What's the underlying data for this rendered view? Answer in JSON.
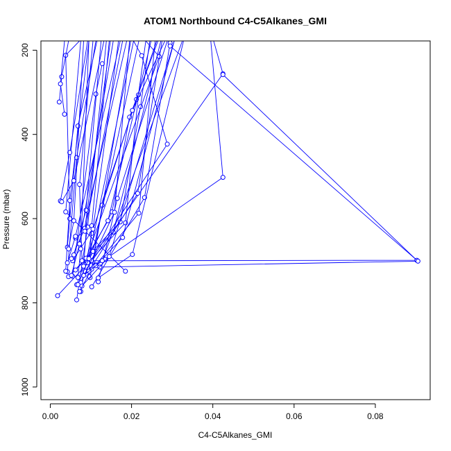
{
  "chart_data": {
    "type": "line",
    "title": "ATOM1 Northbound C4-C5Alkanes_GMI",
    "xlabel": "C4-C5Alkanes_GMI",
    "ylabel": "Pressure (mbar)",
    "xlim": [
      -0.0023,
      0.0935
    ],
    "ylim": [
      1030,
      178
    ],
    "y_reversed": true,
    "x_ticks": [
      "0.00",
      "0.02",
      "0.04",
      "0.06",
      "0.08"
    ],
    "x_tick_values": [
      0,
      0.02,
      0.04,
      0.06,
      0.08
    ],
    "y_ticks": [
      "200",
      "400",
      "600",
      "800",
      "1000"
    ],
    "y_tick_values": [
      200,
      400,
      600,
      800,
      1000
    ],
    "color": "#0000FF",
    "markers": "open-circle",
    "legend": "none",
    "grid": false,
    "series": [
      {
        "x": [
          0.0018,
          0.0185,
          0.0217,
          0.0235
        ],
        "y": [
          783,
          610,
          306,
          178
        ]
      },
      {
        "x": [
          0.0045,
          0.0172,
          0.0222,
          0.0245
        ],
        "y": [
          738,
          608,
          334,
          178
        ]
      },
      {
        "x": [
          0.0055,
          0.0112,
          0.0128
        ],
        "y": [
          737,
          304,
          232
        ]
      },
      {
        "x": [
          0.0065,
          0.0092,
          0.0138
        ],
        "y": [
          793,
          620,
          178
        ]
      },
      {
        "x": [
          0.0075,
          0.0102,
          0.0212,
          0.0262
        ],
        "y": [
          773,
          635,
          317,
          178
        ]
      },
      {
        "x": [
          0.0088,
          0.0152,
          0.0195,
          0.0265
        ],
        "y": [
          700,
          584,
          359,
          178
        ]
      },
      {
        "x": [
          0.0098,
          0.0128,
          0.0202,
          0.0282
        ],
        "y": [
          740,
          568,
          343,
          178
        ]
      },
      {
        "x": [
          0.0118,
          0.0165,
          0.0288
        ],
        "y": [
          750,
          552,
          178
        ]
      },
      {
        "x": [
          0.0185,
          0.0038,
          0.0075
        ],
        "y": [
          725,
          584,
          178
        ]
      },
      {
        "x": [
          0.0042,
          0.0068,
          0.0115
        ],
        "y": [
          668,
          380,
          178
        ]
      },
      {
        "x": [
          0.0025,
          0.0048,
          0.0092
        ],
        "y": [
          558,
          443,
          178
        ]
      },
      {
        "x": [
          0.0042,
          0.0065,
          0.0112
        ],
        "y": [
          726,
          455,
          178
        ]
      },
      {
        "x": [
          0.0078,
          0.0072,
          0.0105
        ],
        "y": [
          700,
          519,
          178
        ]
      },
      {
        "x": [
          0.0048,
          0.0038,
          0.0072
        ],
        "y": [
          600,
          212,
          178
        ]
      },
      {
        "x": [
          0.0022,
          0.0028,
          0.0045
        ],
        "y": [
          323,
          263,
          178
        ]
      },
      {
        "x": [
          0.0035,
          0.0025,
          0.0035
        ],
        "y": [
          352,
          280,
          178
        ]
      },
      {
        "x": [
          0.0098,
          0.0288,
          0.0225,
          0.0205
        ],
        "y": [
          702,
          423,
          213,
          178
        ]
      },
      {
        "x": [
          0.0102,
          0.0232,
          0.0295
        ],
        "y": [
          762,
          550,
          183
        ]
      },
      {
        "x": [
          0.0085,
          0.0425,
          0.0402
        ],
        "y": [
          725,
          256,
          178
        ]
      },
      {
        "x": [
          0.0102,
          0.0902,
          0.0425
        ],
        "y": [
          700,
          699,
          258
        ]
      },
      {
        "x": [
          0.0122,
          0.0905,
          0.0295
        ],
        "y": [
          715,
          701,
          190
        ]
      },
      {
        "x": [
          0.0135,
          0.0425,
          0.0395
        ],
        "y": [
          697,
          502,
          178
        ]
      },
      {
        "x": [
          0.0065,
          0.0268,
          0.0235
        ],
        "y": [
          757,
          215,
          178
        ]
      },
      {
        "x": [
          0.0075,
          0.0158,
          0.0195
        ],
        "y": [
          752,
          585,
          178
        ]
      },
      {
        "x": [
          0.0112,
          0.0218,
          0.0258
        ],
        "y": [
          710,
          587,
          178
        ]
      },
      {
        "x": [
          0.0095,
          0.0102,
          0.0145
        ],
        "y": [
          737,
          617,
          178
        ]
      },
      {
        "x": [
          0.0055,
          0.0105,
          0.0168
        ],
        "y": [
          700,
          625,
          178
        ]
      },
      {
        "x": [
          0.0062,
          0.0155,
          0.0272
        ],
        "y": [
          722,
          632,
          178
        ]
      },
      {
        "x": [
          0.0082,
          0.0092,
          0.0188
        ],
        "y": [
          713,
          582,
          178
        ]
      },
      {
        "x": [
          0.0092,
          0.0105,
          0.0218
        ],
        "y": [
          705,
          678,
          178
        ]
      },
      {
        "x": [
          0.0052,
          0.0085,
          0.0148
        ],
        "y": [
          695,
          623,
          178
        ]
      },
      {
        "x": [
          0.0078,
          0.0145,
          0.0305
        ],
        "y": [
          760,
          690,
          178
        ]
      },
      {
        "x": [
          0.0038,
          0.0048,
          0.0095
        ],
        "y": [
          725,
          557,
          178
        ]
      },
      {
        "x": [
          0.0058,
          0.0088,
          0.0125
        ],
        "y": [
          686,
          580,
          178
        ]
      },
      {
        "x": [
          0.0068,
          0.0075,
          0.0095
        ],
        "y": [
          740,
          672,
          178
        ]
      },
      {
        "x": [
          0.0045,
          0.0058,
          0.0082
        ],
        "y": [
          672,
          605,
          178
        ]
      },
      {
        "x": [
          0.0028,
          0.0058,
          0.0132
        ],
        "y": [
          560,
          510,
          178
        ]
      },
      {
        "x": [
          0.0072,
          0.0102,
          0.0198
        ],
        "y": [
          773,
          720,
          178
        ]
      },
      {
        "x": [
          0.0095,
          0.0215,
          0.0275
        ],
        "y": [
          725,
          540,
          178
        ]
      },
      {
        "x": [
          0.0088,
          0.0142,
          0.0248
        ],
        "y": [
          694,
          605,
          178
        ]
      },
      {
        "x": [
          0.0062,
          0.0085,
          0.0178
        ],
        "y": [
          646,
          630,
          178
        ]
      },
      {
        "x": [
          0.0052,
          0.0072,
          0.0155
        ],
        "y": [
          735,
          660,
          178
        ]
      },
      {
        "x": [
          0.0112,
          0.0178,
          0.0305
        ],
        "y": [
          712,
          645,
          178
        ]
      },
      {
        "x": [
          0.0082,
          0.0128,
          0.0325
        ],
        "y": [
          735,
          700,
          178
        ]
      },
      {
        "x": [
          0.0042,
          0.0062,
          0.0172
        ],
        "y": [
          705,
          642,
          178
        ]
      },
      {
        "x": [
          0.0118,
          0.0202,
          0.0328
        ],
        "y": [
          741,
          685,
          178
        ]
      },
      {
        "x": [
          0.0068,
          0.0095,
          0.0205
        ],
        "y": [
          757,
          695,
          178
        ]
      }
    ]
  }
}
